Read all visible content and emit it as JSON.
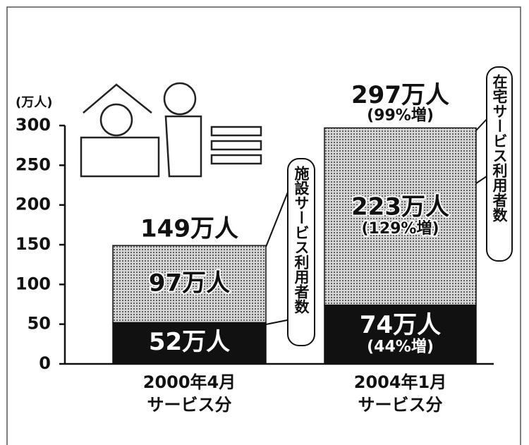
{
  "chart_data": {
    "type": "stacked-bar",
    "y_label": "(万人)",
    "categories": [
      "2000年4月",
      "2004年1月"
    ],
    "category_sublabels": [
      "サービス分",
      "サービス分"
    ],
    "series": [
      {
        "name": "施設サービス利用者数",
        "color": "#111111",
        "values": [
          52,
          74
        ],
        "value_labels": [
          "52万人",
          "74万人"
        ],
        "increase_labels": [
          null,
          "(44%増)"
        ]
      },
      {
        "name": "在宅サービス利用者数",
        "color": "#9a9a9a",
        "values": [
          97,
          223
        ],
        "value_labels": [
          "97万人",
          "223万人"
        ],
        "increase_labels": [
          null,
          "(129%増)"
        ]
      }
    ],
    "totals": {
      "values": [
        149,
        297
      ],
      "value_labels": [
        "149万人",
        "297万人"
      ],
      "increase_labels": [
        null,
        "(99%増)"
      ]
    },
    "ylim": [
      0,
      300
    ],
    "yticks": [
      0,
      50,
      100,
      150,
      200,
      250,
      300
    ],
    "grid": false
  }
}
